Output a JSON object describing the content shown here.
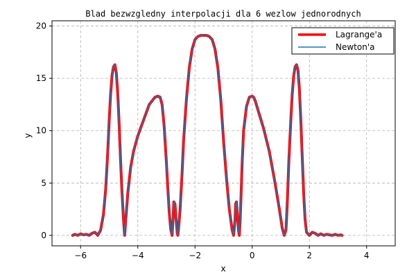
{
  "chart_data": {
    "type": "line",
    "title": "Blad bezwzgledny interpolacji dla 6 wezlow jednorodnych",
    "xlabel": "x",
    "ylabel": "y",
    "xlim": [
      -7,
      5
    ],
    "ylim": [
      -1,
      20.5
    ],
    "xticks": [
      -6,
      -4,
      -2,
      0,
      2,
      4
    ],
    "xtick_labels": [
      "−6",
      "−4",
      "−2",
      "0",
      "2",
      "4"
    ],
    "yticks": [
      0,
      5,
      10,
      15,
      20
    ],
    "ytick_labels": [
      "0",
      "5",
      "10",
      "15",
      "20"
    ],
    "grid": true,
    "legend_position": "top-right",
    "x": [
      -6.28,
      -6.2,
      -6.1,
      -6.0,
      -5.9,
      -5.8,
      -5.7,
      -5.6,
      -5.5,
      -5.4,
      -5.3,
      -5.2,
      -5.12,
      -5.05,
      -5.0,
      -4.95,
      -4.9,
      -4.85,
      -4.8,
      -4.75,
      -4.7,
      -4.65,
      -4.6,
      -4.55,
      -4.5,
      -4.46,
      -4.42,
      -4.35,
      -4.25,
      -4.15,
      -4.0,
      -3.8,
      -3.6,
      -3.4,
      -3.3,
      -3.22,
      -3.15,
      -3.08,
      -3.0,
      -2.95,
      -2.9,
      -2.85,
      -2.8,
      -2.76,
      -2.74,
      -2.7,
      -2.66,
      -2.62,
      -2.6,
      -2.58,
      -2.52,
      -2.45,
      -2.4,
      -2.3,
      -2.2,
      -2.1,
      -2.0,
      -1.9,
      -1.8,
      -1.7,
      -1.6,
      -1.5,
      -1.4,
      -1.3,
      -1.2,
      -1.1,
      -1.0,
      -0.9,
      -0.8,
      -0.7,
      -0.65,
      -0.6,
      -0.58,
      -0.55,
      -0.52,
      -0.48,
      -0.45,
      -0.42,
      -0.4,
      -0.35,
      -0.3,
      -0.2,
      -0.1,
      0.0,
      0.05,
      0.1,
      0.2,
      0.4,
      0.6,
      0.8,
      0.95,
      1.05,
      1.12,
      1.18,
      1.2,
      1.24,
      1.28,
      1.35,
      1.4,
      1.45,
      1.5,
      1.55,
      1.6,
      1.65,
      1.7,
      1.75,
      1.8,
      1.85,
      1.9,
      2.0,
      2.1,
      2.2,
      2.3,
      2.4,
      2.5,
      2.6,
      2.7,
      2.8,
      2.9,
      3.0,
      3.1,
      3.14
    ],
    "series": [
      {
        "name": "Lagrange'a",
        "color": "#ff0000",
        "y": [
          0.0,
          0.1,
          0.0,
          0.15,
          0.05,
          0.1,
          0.0,
          0.2,
          0.3,
          0.0,
          0.5,
          2.0,
          4.5,
          8.0,
          11.0,
          13.5,
          15.3,
          16.1,
          16.3,
          15.5,
          13.5,
          10.5,
          7.0,
          4.0,
          1.5,
          0.0,
          1.5,
          4.0,
          6.5,
          8.0,
          9.5,
          11.0,
          12.5,
          13.2,
          13.3,
          13.2,
          12.5,
          10.5,
          7.0,
          4.5,
          2.2,
          0.6,
          0.0,
          2.0,
          3.2,
          3.0,
          1.5,
          0.2,
          0.0,
          0.5,
          2.5,
          6.0,
          9.0,
          13.0,
          16.0,
          17.8,
          18.7,
          19.0,
          19.1,
          19.1,
          19.1,
          19.0,
          18.7,
          17.8,
          16.0,
          13.0,
          9.0,
          5.5,
          2.5,
          0.5,
          0.0,
          1.5,
          3.0,
          3.2,
          2.0,
          0.5,
          0.0,
          1.5,
          3.0,
          7.0,
          10.0,
          12.3,
          13.2,
          13.3,
          13.2,
          12.9,
          12.0,
          10.2,
          8.0,
          5.0,
          2.5,
          0.7,
          0.0,
          0.5,
          1.5,
          4.0,
          7.0,
          11.0,
          13.5,
          15.2,
          16.1,
          16.3,
          15.8,
          14.0,
          11.0,
          7.5,
          4.0,
          1.5,
          0.3,
          0.0,
          0.3,
          0.2,
          0.0,
          0.15,
          0.0,
          0.1,
          0.05,
          0.0,
          0.1,
          0.0,
          0.05,
          0.0
        ]
      },
      {
        "name": "Newton'a",
        "color": "#1f77b4",
        "y": [
          0.0,
          0.1,
          0.0,
          0.15,
          0.05,
          0.1,
          0.0,
          0.2,
          0.3,
          0.0,
          0.5,
          2.0,
          4.5,
          8.0,
          11.0,
          13.5,
          15.3,
          16.1,
          16.3,
          15.5,
          13.5,
          10.5,
          7.0,
          4.0,
          1.5,
          0.0,
          1.5,
          4.0,
          6.5,
          8.0,
          9.5,
          11.0,
          12.5,
          13.2,
          13.3,
          13.2,
          12.5,
          10.5,
          7.0,
          4.5,
          2.2,
          0.6,
          0.0,
          2.0,
          3.2,
          3.0,
          1.5,
          0.2,
          0.0,
          0.5,
          2.5,
          6.0,
          9.0,
          13.0,
          16.0,
          17.8,
          18.7,
          19.0,
          19.1,
          19.1,
          19.1,
          19.0,
          18.7,
          17.8,
          16.0,
          13.0,
          9.0,
          5.5,
          2.5,
          0.5,
          0.0,
          1.5,
          3.0,
          3.2,
          2.0,
          0.5,
          0.0,
          1.5,
          3.0,
          7.0,
          10.0,
          12.3,
          13.2,
          13.3,
          13.2,
          12.9,
          12.0,
          10.2,
          8.0,
          5.0,
          2.5,
          0.7,
          0.0,
          0.5,
          1.5,
          4.0,
          7.0,
          11.0,
          13.5,
          15.2,
          16.1,
          16.3,
          15.8,
          14.0,
          11.0,
          7.5,
          4.0,
          1.5,
          0.3,
          0.0,
          0.3,
          0.2,
          0.0,
          0.15,
          0.0,
          0.1,
          0.05,
          0.0,
          0.1,
          0.0,
          0.05,
          0.0
        ]
      }
    ]
  }
}
